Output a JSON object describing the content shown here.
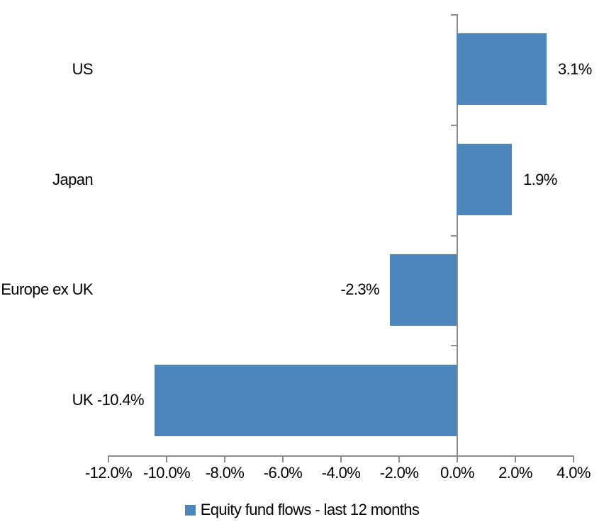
{
  "chart_data": {
    "type": "bar",
    "orientation": "horizontal",
    "title": "",
    "xlabel": "",
    "ylabel": "",
    "categories": [
      "US",
      "Japan",
      "Europe ex UK",
      "UK"
    ],
    "series": [
      {
        "name": "Equity fund flows - last 12 months",
        "values": [
          3.1,
          1.9,
          -2.3,
          -10.4
        ],
        "value_labels": [
          "3.1%",
          "1.9%",
          "-2.3%",
          "-10.4%"
        ]
      }
    ],
    "xlim": [
      -12,
      4
    ],
    "x_tick_values": [
      -12,
      -10,
      -8,
      -6,
      -4,
      -2,
      0,
      2,
      4
    ],
    "x_tick_labels": [
      "-12.0%",
      "-10.0%",
      "-8.0%",
      "-6.0%",
      "-4.0%",
      "-2.0%",
      "0.0%",
      "2.0%",
      "4.0%"
    ],
    "grid": false,
    "legend_position": "bottom",
    "value_label_side": "outside-end"
  },
  "legend": {
    "label": "Equity fund flows - last 12 months"
  },
  "colors": {
    "bar": "#4D86BC",
    "legend_swatch": "#4D86BC",
    "axis": "#8C8C8C",
    "text": "#000000",
    "background": "#FFFFFF"
  }
}
